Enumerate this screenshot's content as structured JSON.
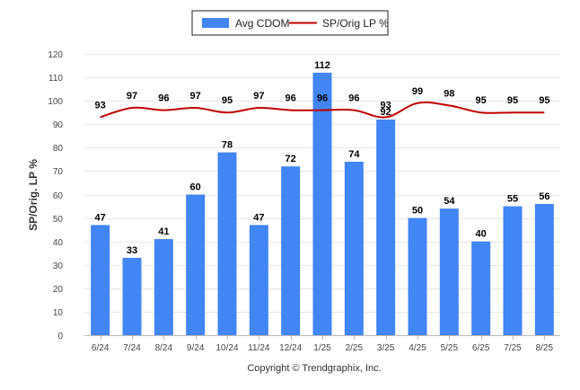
{
  "chart_data": {
    "type": "bar",
    "categories": [
      "6/24",
      "7/24",
      "8/24",
      "9/24",
      "10/24",
      "11/24",
      "12/24",
      "1/25",
      "2/25",
      "3/25",
      "4/25",
      "5/25",
      "6/25",
      "7/25",
      "8/25"
    ],
    "series": [
      {
        "name": "Avg CDOM",
        "type": "bar",
        "color": "#4285f4",
        "values": [
          47,
          33,
          41,
          60,
          78,
          47,
          72,
          112,
          74,
          92,
          50,
          54,
          40,
          55,
          56
        ]
      },
      {
        "name": "SP/Orig LP %",
        "type": "line",
        "color": "#c00000",
        "values": [
          93,
          97,
          96,
          97,
          95,
          97,
          96,
          96,
          96,
          93,
          99,
          98,
          95,
          95,
          95
        ]
      }
    ],
    "ylabel": "SP/Orig. LP %",
    "xlabel": "",
    "ylim": [
      0,
      120
    ],
    "yticks": [
      0,
      10,
      20,
      30,
      40,
      50,
      60,
      70,
      80,
      90,
      100,
      110,
      120
    ],
    "grid": true,
    "legend": "top-center"
  },
  "copyright": "Copyright © Trendgraphix, Inc."
}
